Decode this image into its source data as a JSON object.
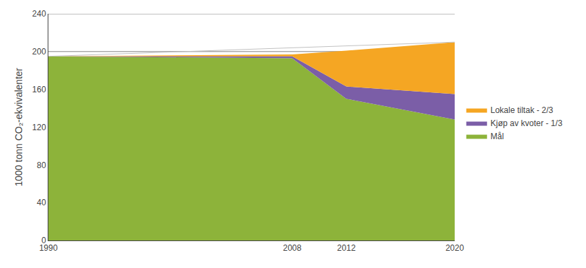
{
  "chart_data": {
    "type": "area",
    "stacked": true,
    "x": [
      1990,
      2008,
      2012,
      2020
    ],
    "series": [
      {
        "name": "Mål",
        "color": "#8DB33A",
        "values": [
          195,
          193,
          150,
          128
        ]
      },
      {
        "name": "Kjøp av kvoter - 1/3",
        "color": "#7B5EA7",
        "values": [
          0,
          2,
          13,
          27
        ]
      },
      {
        "name": "Lokale tiltak - 2/3",
        "color": "#F5A623",
        "values": [
          0,
          2,
          38,
          55
        ]
      },
      {
        "type": "line",
        "color": "#C0C0C0",
        "x": [
          1990,
          2020
        ],
        "values": [
          195,
          210
        ]
      }
    ],
    "ylabel": "1000 tonn CO₂-ekvivalenter",
    "xlim": [
      1990,
      2020
    ],
    "xticks": [
      1990,
      2008,
      2012,
      2020
    ],
    "ylim": [
      0,
      240
    ],
    "yticks": [
      0,
      40,
      80,
      120,
      160,
      200,
      240
    ],
    "grid": false,
    "hlines": [
      200,
      240
    ],
    "legend": "right"
  }
}
